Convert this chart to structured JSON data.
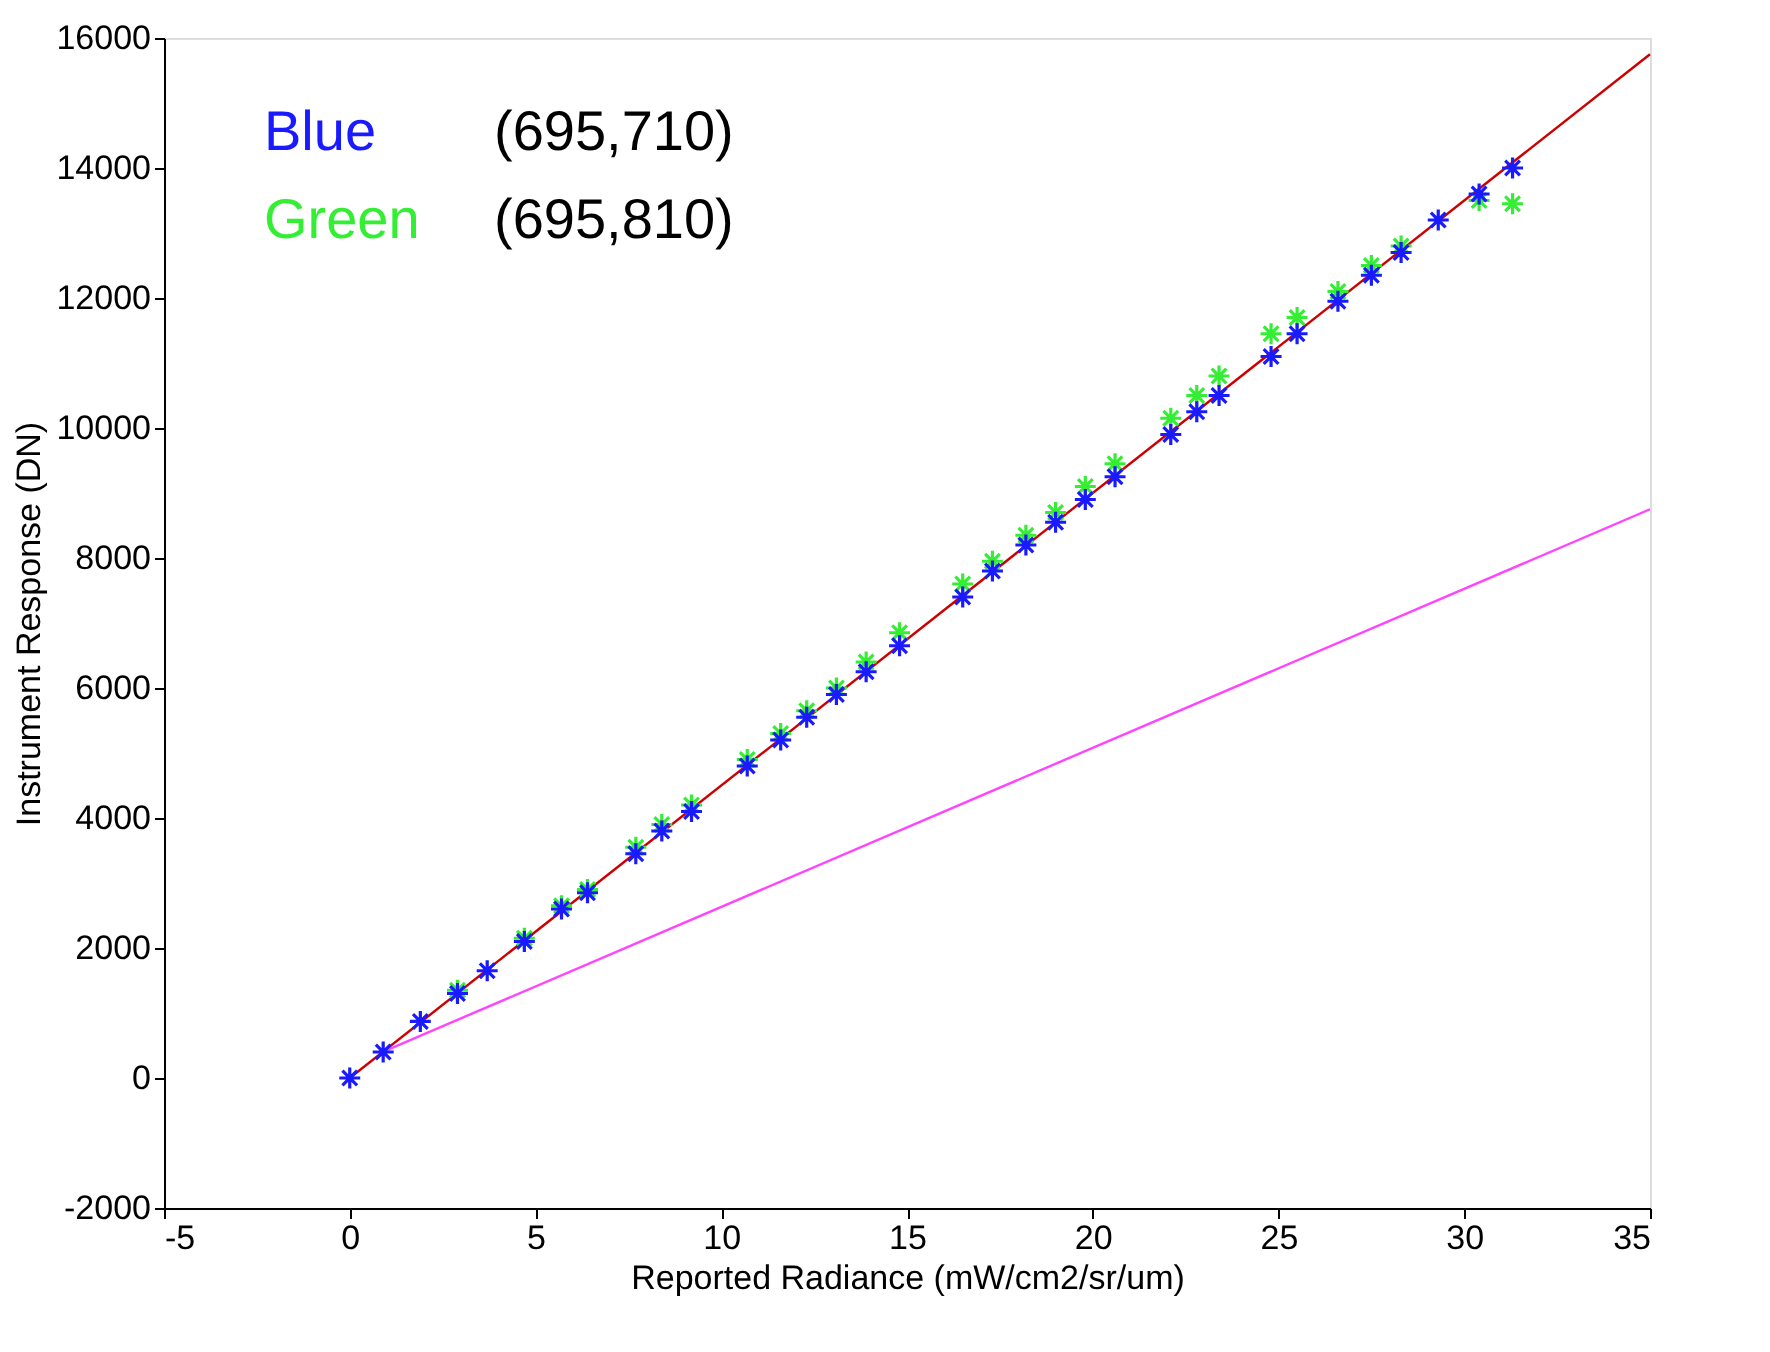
{
  "chart_data": {
    "type": "scatter",
    "xlabel": "Reported Radiance (mW/cm2/sr/um)",
    "ylabel": "Instrument Response (DN)",
    "xlim": [
      -5,
      35
    ],
    "xticks": [
      -5,
      0,
      5,
      10,
      15,
      20,
      25,
      30,
      35
    ],
    "ylim": [
      -2000,
      16000
    ],
    "yticks": [
      -2000,
      0,
      2000,
      4000,
      6000,
      8000,
      10000,
      12000,
      14000,
      16000
    ],
    "grid": false,
    "legend": "top left",
    "marker": "cross",
    "annotations": [
      "(695,710)",
      "(695,810)"
    ],
    "series": [
      {
        "name": "Blue",
        "color": "#1a1aff",
        "x": [
          0,
          0.9,
          1.9,
          2.9,
          3.7,
          4.7,
          5.7,
          6.4,
          7.7,
          8.4,
          9.2,
          10.7,
          11.6,
          12.3,
          13.1,
          13.9,
          14.8,
          16.5,
          17.3,
          18.2,
          19.0,
          19.8,
          20.6,
          22.1,
          22.8,
          23.4,
          24.8,
          25.5,
          26.6,
          27.5,
          28.3,
          29.3,
          30.4,
          31.3
        ],
        "values": [
          0,
          400,
          870,
          1300,
          1650,
          2100,
          2600,
          2850,
          3450,
          3800,
          4100,
          4800,
          5200,
          5550,
          5900,
          6250,
          6650,
          7400,
          7800,
          8200,
          8550,
          8900,
          9250,
          9900,
          10250,
          10500,
          11100,
          11450,
          11950,
          12350,
          12700,
          13200,
          13600,
          14000
        ]
      },
      {
        "name": "Green",
        "color": "#33ee33",
        "x": [
          2.9,
          4.7,
          5.7,
          6.4,
          7.7,
          8.4,
          9.2,
          10.7,
          11.6,
          12.3,
          13.1,
          13.9,
          14.8,
          16.5,
          17.3,
          18.2,
          19.0,
          19.8,
          20.6,
          22.1,
          22.8,
          23.4,
          24.8,
          25.5,
          26.6,
          27.5,
          28.3,
          30.4,
          31.3
        ],
        "values": [
          1350,
          2150,
          2650,
          2900,
          3550,
          3900,
          4200,
          4900,
          5300,
          5650,
          6000,
          6400,
          6850,
          7600,
          7950,
          8350,
          8700,
          9100,
          9450,
          10150,
          10500,
          10800,
          11450,
          11700,
          12100,
          12500,
          12800,
          13500,
          13450
        ]
      },
      {
        "type": "line",
        "marker": "none",
        "color": "#cc0000",
        "x": [
          0,
          35
        ],
        "values": [
          0,
          15750
        ]
      },
      {
        "type": "line",
        "marker": "none",
        "color": "#ff44ff",
        "x": [
          1,
          35
        ],
        "values": [
          430,
          8750
        ]
      }
    ]
  }
}
